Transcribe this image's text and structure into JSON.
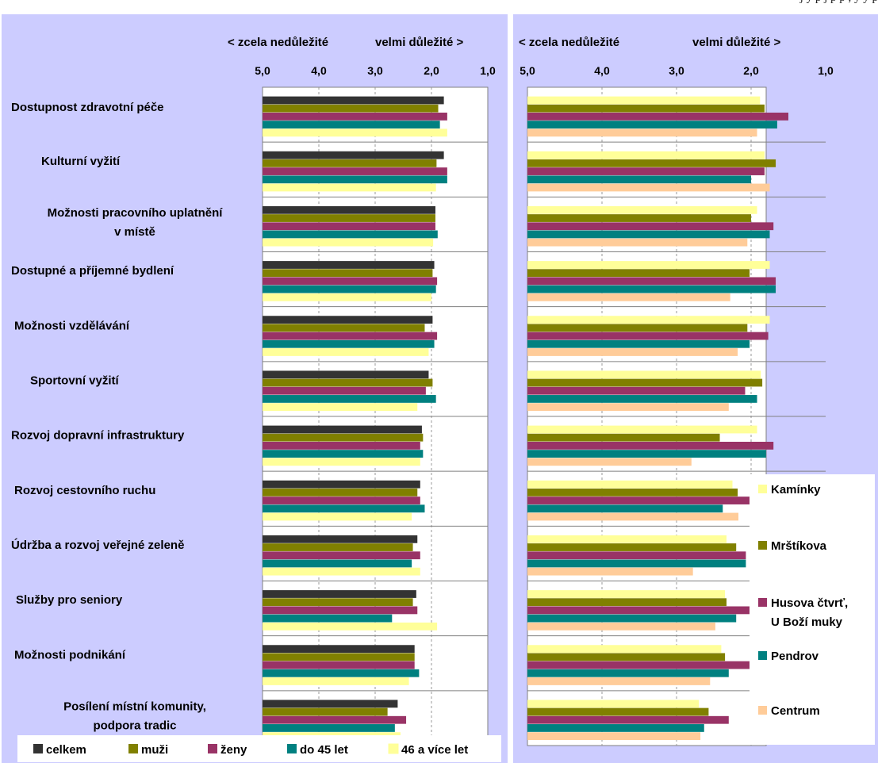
{
  "header_fragment": "j y p j p p , y y p",
  "chart_data": [
    {
      "type": "bar",
      "orientation": "horizontal",
      "axis_reversed": true,
      "xlim": [
        1.0,
        5.0
      ],
      "scale_left": "< zcela nedůležité",
      "scale_right": "velmi důležité >",
      "ticks": [
        "5,0",
        "4,0",
        "3,0",
        "2,0",
        "1,0"
      ],
      "categories": [
        "Dostupnost zdravotní péče",
        "Kulturní vyžití",
        "Možnosti pracovního uplatnění v místě",
        "Dostupné a příjemné bydlení",
        "Možnosti vzdělávání",
        "Sportovní vyžití",
        "Rozvoj dopravní infrastruktury",
        "Rozvoj cestovního ruchu",
        "Údržba a rozvoj veřejné zeleně",
        "Služby pro seniory",
        "Možnosti podnikání",
        "Posílení místní komunity, podpora tradic"
      ],
      "category_lines": [
        [
          "Dostupnost zdravotní péče"
        ],
        [
          "Kulturní vyžití"
        ],
        [
          "Možnosti pracovního uplatnění",
          "v místě"
        ],
        [
          "Dostupné a příjemné bydlení"
        ],
        [
          "Možnosti vzdělávání"
        ],
        [
          "Sportovní vyžití"
        ],
        [
          "Rozvoj dopravní infrastruktury"
        ],
        [
          "Rozvoj cestovního ruchu"
        ],
        [
          "Údržba a rozvoj veřejné zeleně"
        ],
        [
          "Služby pro seniory"
        ],
        [
          "Možnosti podnikání"
        ],
        [
          "Posílení místní komunity,",
          "podpora tradic"
        ]
      ],
      "series": [
        {
          "name": "celkem",
          "color": "#333333",
          "values": [
            1.78,
            1.78,
            1.93,
            1.95,
            1.98,
            2.05,
            2.17,
            2.2,
            2.25,
            2.27,
            2.3,
            2.6
          ]
        },
        {
          "name": "muži",
          "color": "#808000",
          "values": [
            1.88,
            1.91,
            1.93,
            1.98,
            2.12,
            1.98,
            2.15,
            2.25,
            2.33,
            2.33,
            2.3,
            2.78
          ]
        },
        {
          "name": "ženy",
          "color": "#993366",
          "values": [
            1.72,
            1.72,
            1.93,
            1.9,
            1.9,
            2.1,
            2.2,
            2.2,
            2.2,
            2.25,
            2.3,
            2.45
          ]
        },
        {
          "name": "do 45 let",
          "color": "#008080",
          "values": [
            1.85,
            1.72,
            1.89,
            1.92,
            1.95,
            1.92,
            2.15,
            2.12,
            2.35,
            2.7,
            2.22,
            2.65
          ]
        },
        {
          "name": "46 a více let",
          "color": "#ffff99",
          "values": [
            1.72,
            1.92,
            1.97,
            2.0,
            2.05,
            2.25,
            2.2,
            2.35,
            2.2,
            1.9,
            2.4,
            2.55
          ]
        }
      ],
      "legend_position": "bottom"
    },
    {
      "type": "bar",
      "orientation": "horizontal",
      "axis_reversed": true,
      "xlim": [
        1.0,
        5.0
      ],
      "scale_left": "< zcela nedůležité",
      "scale_right": "velmi důležité >",
      "ticks": [
        "5,0",
        "4,0",
        "3,0",
        "2,0",
        "1,0"
      ],
      "series": [
        {
          "name": "Kamínky",
          "color": "#ffff99",
          "values": [
            1.88,
            1.82,
            1.92,
            1.75,
            1.75,
            1.87,
            1.92,
            2.25,
            2.33,
            2.35,
            2.4,
            2.7
          ]
        },
        {
          "name": "Mrštíkova",
          "color": "#808000",
          "values": [
            1.82,
            1.67,
            2.0,
            2.02,
            2.05,
            1.85,
            2.42,
            2.18,
            2.2,
            2.33,
            2.35,
            2.57
          ]
        },
        {
          "name": "Husova čtvrť, U Boží muky",
          "color": "#993366",
          "values": [
            1.5,
            1.82,
            1.7,
            1.67,
            1.77,
            2.08,
            1.7,
            2.0,
            2.07,
            1.93,
            1.67,
            2.3
          ]
        },
        {
          "name": "Pendrov",
          "color": "#008080",
          "values": [
            1.65,
            2.0,
            1.75,
            1.67,
            2.02,
            1.92,
            1.8,
            2.38,
            2.07,
            2.2,
            2.3,
            2.63
          ]
        },
        {
          "name": "Centrum",
          "color": "#ffcc99",
          "values": [
            1.92,
            1.75,
            2.05,
            2.28,
            2.18,
            2.3,
            2.8,
            2.17,
            2.78,
            2.48,
            2.55,
            2.68
          ]
        }
      ],
      "legend_position": "right"
    }
  ]
}
